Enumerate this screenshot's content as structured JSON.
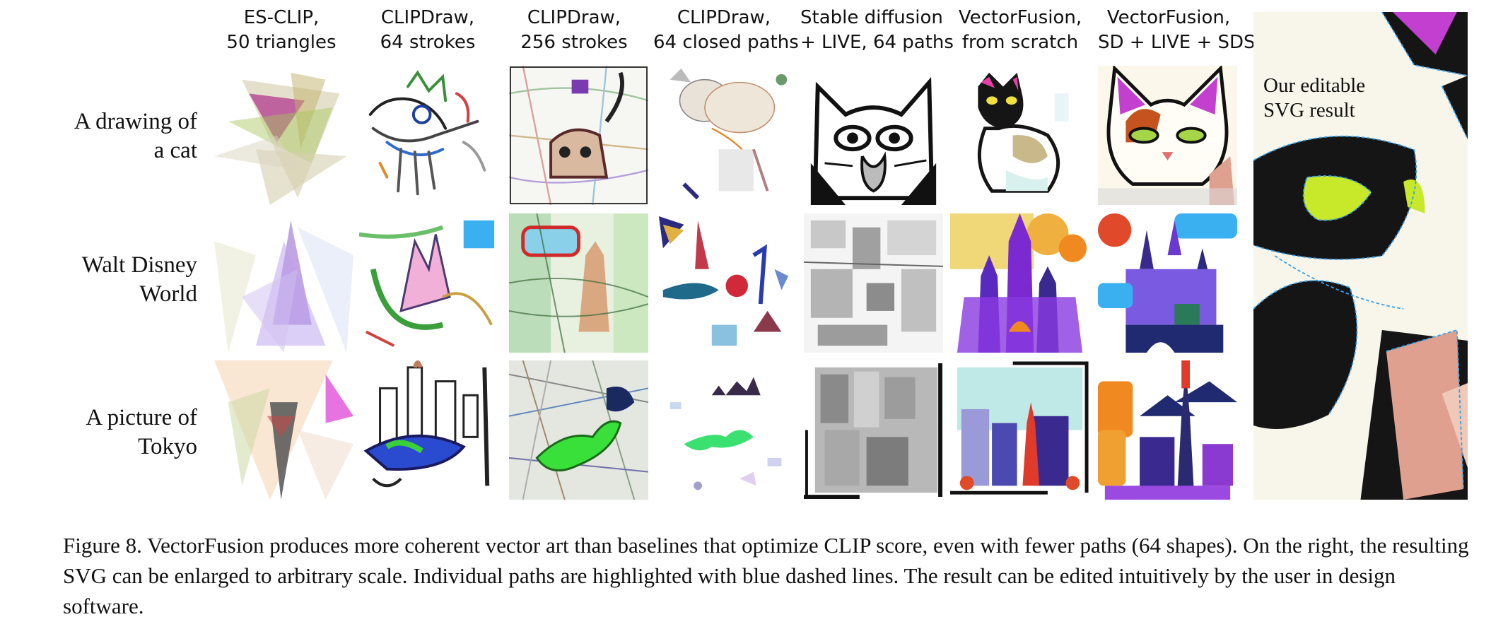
{
  "columns": [
    {
      "line1": "ES-CLIP,",
      "line2": "50 triangles"
    },
    {
      "line1": "CLIPDraw,",
      "line2": "64 strokes"
    },
    {
      "line1": "CLIPDraw,",
      "line2": "256 strokes"
    },
    {
      "line1": "CLIPDraw,",
      "line2": "64 closed paths"
    },
    {
      "line1": "Stable diffusion",
      "line2": "+ LIVE, 64 paths"
    },
    {
      "line1": "VectorFusion,",
      "line2": "from scratch"
    },
    {
      "line1": "VectorFusion,",
      "line2": "SD + LIVE + SDS"
    }
  ],
  "rows": [
    {
      "line1": "A drawing of",
      "line2": "a cat"
    },
    {
      "line1": "Walt Disney",
      "line2": "World"
    },
    {
      "line1": "A picture of",
      "line2": "Tokyo"
    }
  ],
  "big_result": {
    "line1": "Our editable",
    "line2": "SVG result"
  },
  "caption": "Figure 8. VectorFusion produces more coherent vector art than baselines that optimize CLIP score, even with fewer paths (64 shapes). On the right, the resulting SVG can be enlarged to arbitrary scale. Individual paths are highlighted with blue dashed lines. The result can be edited intuitively by the user in design software."
}
